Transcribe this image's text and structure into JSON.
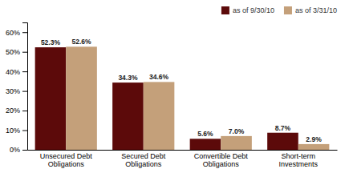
{
  "chart_data": {
    "type": "bar",
    "categories": [
      "Unsecured Debt\nObligations",
      "Secured Debt\nObligations",
      "Convertible Debt\nObligations",
      "Short-term\nInvestments"
    ],
    "series": [
      {
        "name": "as of 9/30/10",
        "color": "#5c0a0a",
        "values": [
          52.3,
          34.3,
          5.6,
          8.7
        ],
        "value_labels": [
          "52.3%",
          "34.3%",
          "5.6%",
          "8.7%"
        ]
      },
      {
        "name": "as of 3/31/10",
        "color": "#c4a07a",
        "values": [
          52.6,
          34.6,
          7.0,
          2.9
        ],
        "value_labels": [
          "52.6%",
          "34.6%",
          "7.0%",
          "2.9%"
        ]
      }
    ],
    "ylim": [
      0,
      65
    ],
    "yticks": [
      {
        "value": 0,
        "label": "0%"
      },
      {
        "value": 10,
        "label": "10%"
      },
      {
        "value": 20,
        "label": "20%"
      },
      {
        "value": 30,
        "label": "30%"
      },
      {
        "value": 40,
        "label": "40%"
      },
      {
        "value": 50,
        "label": "50%"
      },
      {
        "value": 60,
        "label": "60%"
      }
    ],
    "grid": false,
    "legend": "upper right",
    "data_labels": true
  }
}
